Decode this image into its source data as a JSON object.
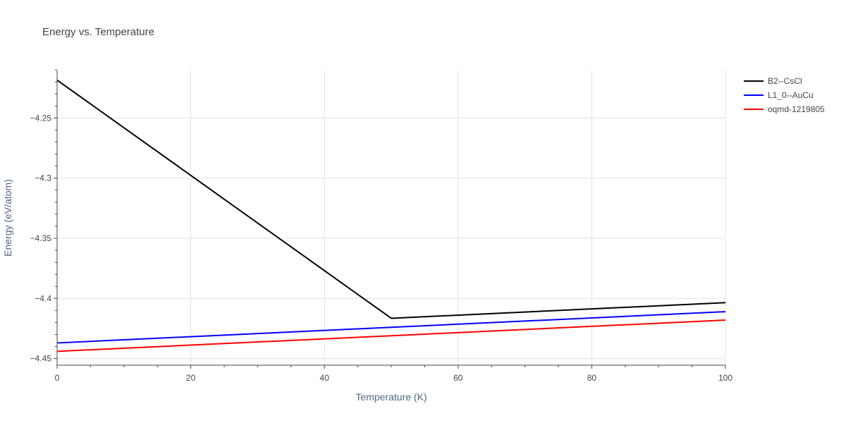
{
  "chart_data": {
    "type": "line",
    "title": "Energy vs. Temperature",
    "xlabel": "Temperature (K)",
    "ylabel": "Energy (eV/atom)",
    "xlim": [
      0,
      100
    ],
    "ylim": [
      -4.4555,
      -4.2105
    ],
    "x_ticks": [
      0,
      20,
      40,
      60,
      80,
      100
    ],
    "y_ticks": [
      -4.25,
      -4.3,
      -4.35,
      -4.4,
      -4.45
    ],
    "x_tick_labels": [
      "0",
      "20",
      "40",
      "60",
      "80",
      "100"
    ],
    "y_tick_labels": [
      "−4.25",
      "−4.3",
      "−4.35",
      "−4.4",
      "−4.45"
    ],
    "grid": true,
    "legend_position": "top-right",
    "series": [
      {
        "name": "B2--CsCl",
        "color": "#000000",
        "x": [
          0,
          50,
          100
        ],
        "y": [
          -4.2185,
          -4.4165,
          -4.4035
        ]
      },
      {
        "name": "L1_0--AuCu",
        "color": "#0000ff",
        "x": [
          0,
          50,
          100
        ],
        "y": [
          -4.437,
          -4.424,
          -4.411
        ]
      },
      {
        "name": "oqmd-1219805",
        "color": "#ff0000",
        "x": [
          0,
          50,
          100
        ],
        "y": [
          -4.444,
          -4.431,
          -4.418
        ]
      }
    ]
  }
}
